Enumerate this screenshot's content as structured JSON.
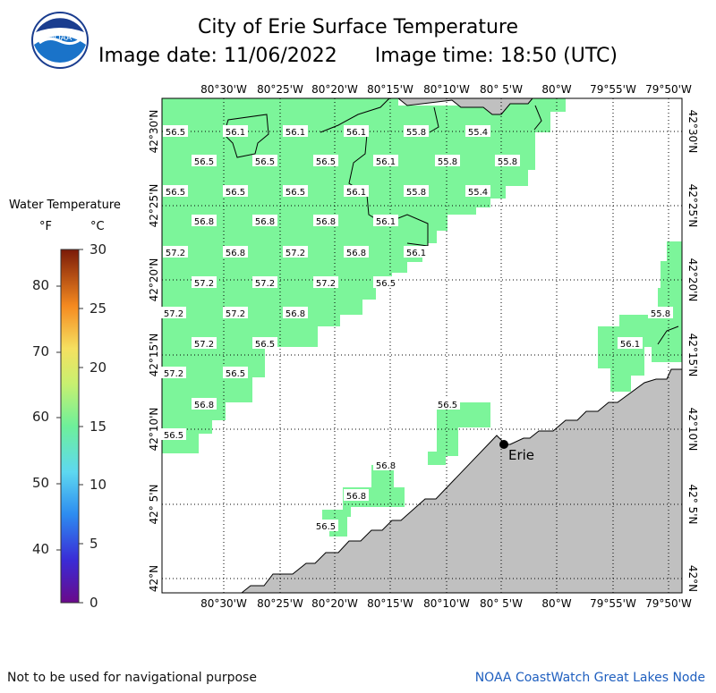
{
  "header": {
    "title": "City of Erie Surface Temperature",
    "image_date": "Image date: 11/06/2022",
    "image_time": "Image time: 18:50 (UTC)"
  },
  "logo": {
    "text": "NOAA"
  },
  "legend": {
    "title": "Water Temperature",
    "unit_f": "°F",
    "unit_c": "°C",
    "f_ticks": [
      "80",
      "70",
      "60",
      "50",
      "40"
    ],
    "c_ticks": [
      "30",
      "25",
      "20",
      "15",
      "10",
      "5",
      "0"
    ]
  },
  "axes": {
    "lon_labels": [
      "80°30'W",
      "80°25'W",
      "80°20'W",
      "80°15'W",
      "80°10'W",
      "80° 5'W",
      "80°W",
      "79°55'W",
      "79°50'W"
    ],
    "lat_labels": [
      "42°30'N",
      "42°25'N",
      "42°20'N",
      "42°15'N",
      "42°10'N",
      "42° 5'N",
      "42°N"
    ]
  },
  "city": {
    "name": "Erie"
  },
  "temperature_labels": [
    "56.5",
    "56.1",
    "56.1",
    "56.1",
    "55.8",
    "55.4",
    "56.5",
    "56.5",
    "56.5",
    "56.1",
    "55.8",
    "55.8",
    "56.5",
    "56.5",
    "56.5",
    "56.1",
    "55.8",
    "55.4",
    "56.8",
    "56.8",
    "56.8",
    "56.1",
    "57.2",
    "56.8",
    "57.2",
    "56.8",
    "56.1",
    "57.2",
    "57.2",
    "57.2",
    "56.5",
    "57.2",
    "57.2",
    "56.8",
    "57.2",
    "56.5",
    "57.2",
    "56.5",
    "56.8",
    "56.5",
    "56.5",
    "56.8",
    "56.8",
    "56.5",
    "56.1",
    "55.8"
  ],
  "footer": {
    "left": "Not to be used for navigational purpose",
    "right": "NOAA CoastWatch Great Lakes Node"
  },
  "colors": {
    "water": "#7cf59a",
    "land": "#c0c0c0",
    "footer_link": "#1f5fbf"
  }
}
